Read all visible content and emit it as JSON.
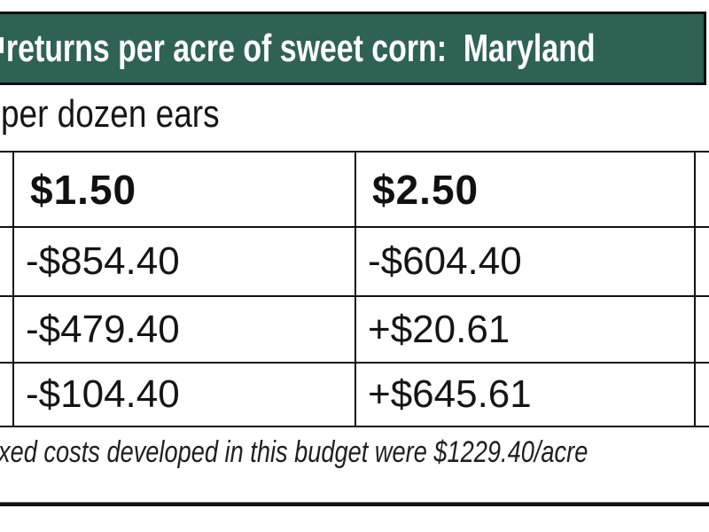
{
  "title_bar": {
    "text": "returns per acre of sweet corn:  Maryland",
    "bg_color": "#2e6254",
    "text_color": "#ffffff"
  },
  "subtitle": "per dozen ears",
  "table": {
    "columns": [
      "$1.50",
      "$2.50"
    ],
    "rows": [
      [
        "-$854.40",
        "-$604.40"
      ],
      [
        "-$479.40",
        "+$20.61"
      ],
      [
        "-$104.40",
        "+$645.61"
      ]
    ]
  },
  "footnote": "xed costs developed in this budget were $1229.40/acre",
  "colors": {
    "accent_green": "#2e6254",
    "border": "#111111"
  }
}
